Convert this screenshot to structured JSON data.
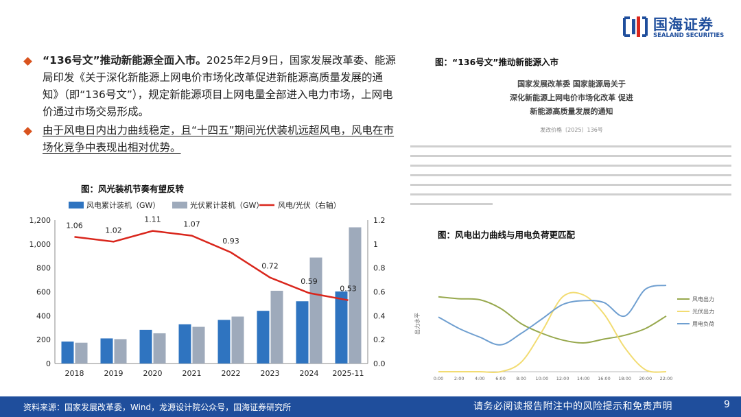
{
  "logo": {
    "name": "国海证券",
    "subtitle": "SEALAND SECURITIES"
  },
  "bullets": [
    {
      "bold": "“136号文”推动新能源全面入市。",
      "text": "2025年2月9日，国家发展改革委、能源局印发《关于深化新能源上网电价市场化改革促进新能源高质量发展的通知》（即“136号文”），规定新能源项目上网电量全部进入电力市场，上网电价通过市场交易形成。"
    },
    {
      "bold": "",
      "text": "由于风电日内出力曲线稳定，且“十四五”期间光伏装机远超风电，风电在市场化竞争中表现出相对优势。"
    }
  ],
  "figure1": {
    "title": "图：风光装机节奏有望反转"
  },
  "figure2": {
    "title": "图：“136号文”推动新能源入市"
  },
  "figure3": {
    "title": "图：风电出力曲线与用电负荷更匹配"
  },
  "document": {
    "title_lines": [
      "国家发展改革委 国家能源局关于",
      "深化新能源上网电价市场化改革 促进",
      "新能源高质量发展的通知"
    ],
    "doc_number": "发改价格〔2025〕136号"
  },
  "chart_data": [
    {
      "type": "bar",
      "title": "图：风光装机节奏有望反转",
      "categories": [
        "2018",
        "2019",
        "2020",
        "2021",
        "2022",
        "2023",
        "2024",
        "2025-11"
      ],
      "series": [
        {
          "name": "风电累计装机（GW）",
          "type": "bar",
          "axis": "left",
          "color": "#2f74c0",
          "values": [
            184,
            210,
            282,
            328,
            365,
            441,
            521,
            603
          ]
        },
        {
          "name": "光伏累计装机（GW）",
          "type": "bar",
          "axis": "left",
          "color": "#9eaabb",
          "values": [
            174,
            204,
            253,
            307,
            393,
            609,
            887,
            1140
          ]
        },
        {
          "name": "风电/光伏（右轴）",
          "type": "line",
          "axis": "right",
          "color": "#d9261c",
          "values": [
            1.06,
            1.02,
            1.11,
            1.07,
            0.93,
            0.72,
            0.59,
            0.53
          ]
        }
      ],
      "yticks_left": [
        "0",
        "200",
        "400",
        "600",
        "800",
        "1,000",
        "1,200"
      ],
      "yticks_right": [
        "0.0",
        "0.2",
        "0.4",
        "0.6",
        "0.8",
        "1",
        "1.2"
      ],
      "ylim_left": [
        0,
        1200
      ],
      "ylim_right": [
        0,
        1.2
      ],
      "legend": "top",
      "grid": false
    },
    {
      "type": "line",
      "title": "图：风电出力曲线与用电负荷更匹配",
      "x": [
        "0:00",
        "2:00",
        "4:00",
        "6:00",
        "8:00",
        "10:00",
        "12:00",
        "14:00",
        "16:00",
        "18:00",
        "20:00",
        "22:00"
      ],
      "ylabel": "出力水平",
      "series": [
        {
          "name": "风电出力",
          "color": "#97a84d",
          "values": [
            0.78,
            0.76,
            0.75,
            0.66,
            0.5,
            0.4,
            0.33,
            0.3,
            0.34,
            0.38,
            0.45,
            0.58
          ]
        },
        {
          "name": "光伏出力",
          "color": "#f2dc72",
          "values": [
            0.0,
            0.0,
            0.0,
            0.0,
            0.1,
            0.42,
            0.78,
            0.8,
            0.6,
            0.25,
            0.02,
            0.0
          ]
        },
        {
          "name": "用电负荷",
          "color": "#6f9fd0",
          "values": [
            0.57,
            0.45,
            0.36,
            0.28,
            0.4,
            0.55,
            0.7,
            0.74,
            0.72,
            0.58,
            0.86,
            0.9
          ]
        }
      ],
      "legend": "right",
      "grid": false
    }
  ],
  "footer": {
    "source": "资料来源：国家发展改革委，Wind，龙源设计院公众号，国海证券研究所",
    "disclaimer": "请务必阅读报告附注中的风险提示和免责声明",
    "page": "9"
  }
}
